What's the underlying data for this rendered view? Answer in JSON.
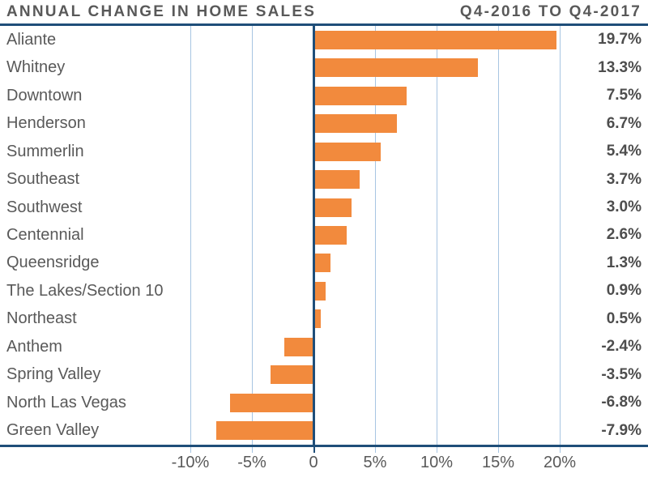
{
  "header": {
    "title_left": "ANNUAL CHANGE IN HOME SALES",
    "title_right": "Q4-2016 TO Q4-2017"
  },
  "chart_data": {
    "type": "bar",
    "orientation": "horizontal",
    "title": "ANNUAL CHANGE IN HOME SALES",
    "subtitle": "Q4-2016 TO Q4-2017",
    "categories": [
      "Aliante",
      "Whitney",
      "Downtown",
      "Henderson",
      "Summerlin",
      "Southeast",
      "Southwest",
      "Centennial",
      "Queensridge",
      "The Lakes/Section 10",
      "Northeast",
      "Anthem",
      "Spring Valley",
      "North Las Vegas",
      "Green Valley"
    ],
    "values": [
      19.7,
      13.3,
      7.5,
      6.7,
      5.4,
      3.7,
      3.0,
      2.6,
      1.3,
      0.9,
      0.5,
      -2.4,
      -3.5,
      -6.8,
      -7.9
    ],
    "value_labels": [
      "19.7%",
      "13.3%",
      "7.5%",
      "6.7%",
      "5.4%",
      "3.7%",
      "3.0%",
      "2.6%",
      "1.3%",
      "0.9%",
      "0.5%",
      "-2.4%",
      "-3.5%",
      "-6.8%",
      "-7.9%"
    ],
    "xlabel": "",
    "ylabel": "",
    "xlim": [
      -10,
      20
    ],
    "x_ticks": [
      {
        "value": -10,
        "label": "-10%"
      },
      {
        "value": -5,
        "label": "-5%"
      },
      {
        "value": 0,
        "label": "0"
      },
      {
        "value": 5,
        "label": "5%"
      },
      {
        "value": 10,
        "label": "10%"
      },
      {
        "value": 15,
        "label": "15%"
      },
      {
        "value": 20,
        "label": "20%"
      }
    ],
    "grid": true,
    "legend": "none",
    "colors": {
      "bar": "#F28A3D",
      "axis": "#1F4E79",
      "gridline": "#A7C5E2",
      "category_text": "#595959",
      "value_text": "#4D4D4D"
    }
  }
}
